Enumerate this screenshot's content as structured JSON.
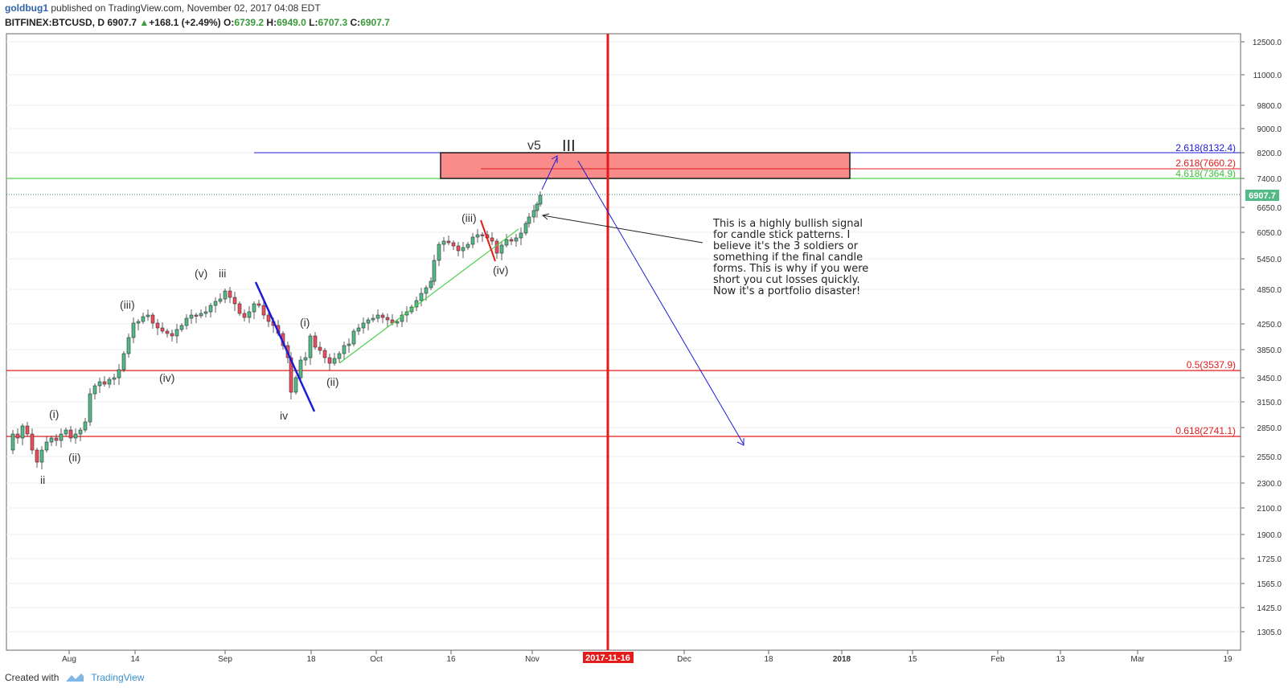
{
  "header": {
    "user": "goldbug1",
    "published": "published on TradingView.com, November 02, 2017 04:08 EDT",
    "symbol": "BITFINEX:BTCUSD, D",
    "last": "6907.7",
    "change": "+168.1 (+2.49%)",
    "open_label": "O:",
    "open": "6739.2",
    "high_label": "H:",
    "high": "6949.0",
    "low_label": "L:",
    "low": "6707.3",
    "close_label": "C:",
    "close": "6907.7"
  },
  "price_axis": {
    "ticks": [
      "12500.0",
      "11000.0",
      "9800.0",
      "9000.0",
      "8200.0",
      "7400.0",
      "6650.0",
      "6050.0",
      "5450.0",
      "4850.0",
      "4250.0",
      "3850.0",
      "3450.0",
      "3150.0",
      "2850.0",
      "2550.0",
      "2300.0",
      "2100.0",
      "1900.0",
      "1725.0",
      "1565.0",
      "1425.0",
      "1305.0"
    ],
    "current_price_badge": "6907.7"
  },
  "time_axis": {
    "labels": [
      "Aug",
      "14",
      "Sep",
      "18",
      "Oct",
      "16",
      "Nov",
      "Dec",
      "18",
      "2018",
      "15",
      "Feb",
      "13",
      "Mar",
      "19"
    ],
    "highlight": "2017-11-16"
  },
  "levels": {
    "fib_2618_blue": "2.618(8132.4)",
    "fib_2618_red": "2.618(7660.2)",
    "fib_4618_green": "4.618(7364.9)",
    "fib_05": "0.5(3537.9)",
    "fib_0618": "0.618(2741.1)"
  },
  "wave_labels": {
    "ii": "ii",
    "i_small": "(i)",
    "ii_small": "(ii)",
    "iii_small": "(iii)",
    "iv_small": "(iv)",
    "v_small": "(v)",
    "iii": "iii",
    "iv": "iv",
    "i_small_2": "(i)",
    "ii_small_2": "(ii)",
    "iii_small_2": "(iii)",
    "iv_small_2": "(iv)",
    "v5": "v5",
    "III": "III"
  },
  "annotation": "This is a highly bullish signal for candle stick patterns. I believe it's the 3 soldiers or something if the final candle forms.  This is why if you were short you cut losses quickly. Now it's a portfolio disaster!",
  "footer": {
    "created_with": "Created with",
    "brand": "TradingView"
  },
  "colors": {
    "up_candle": "#53b987",
    "down_candle": "#eb4d5c",
    "red_line": "#e31b1b",
    "blue_line": "#1b1bd6",
    "green_line": "#4ad24a",
    "target_box": "#f98b8b"
  }
}
